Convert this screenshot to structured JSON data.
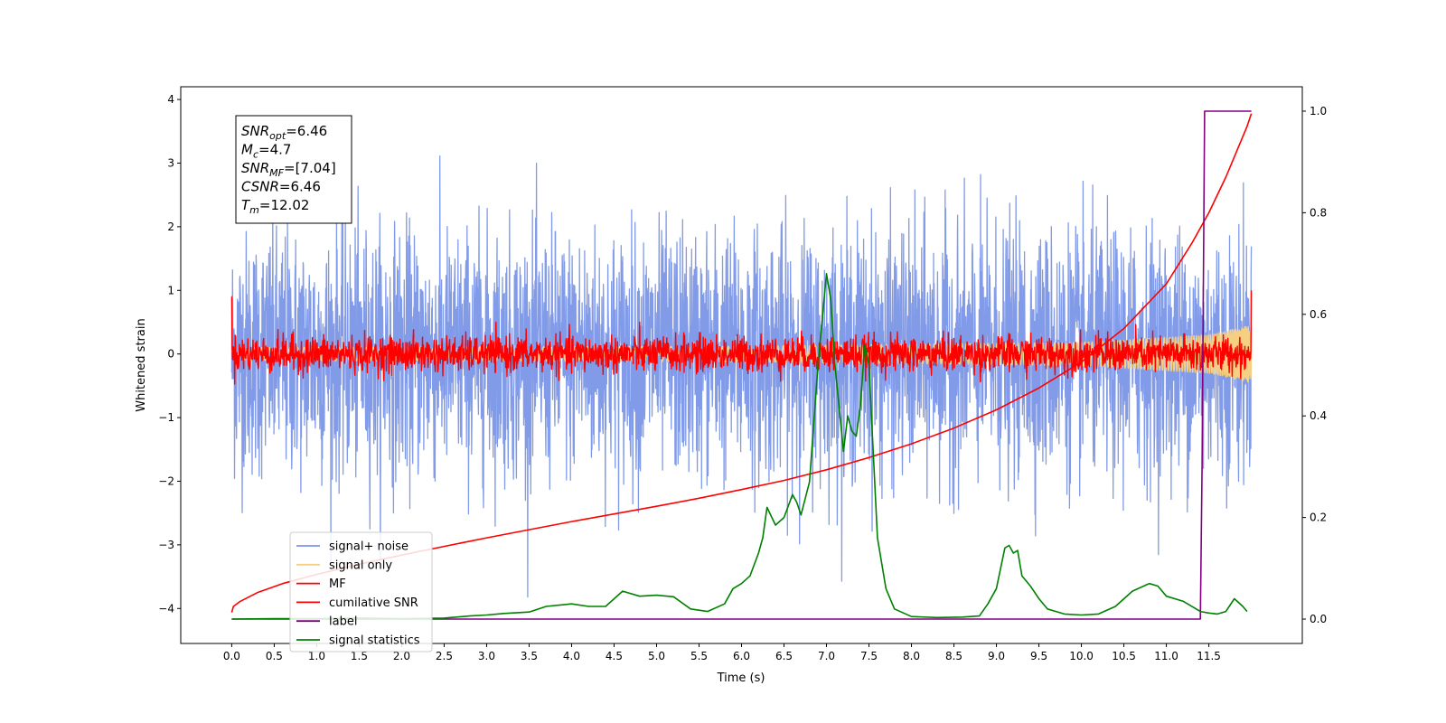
{
  "chart_data": {
    "type": "line",
    "title": "",
    "xlabel": "Time (s)",
    "ylabel": "Whitened strain",
    "y2label": "",
    "xlim": [
      -0.6,
      12.6
    ],
    "ylim": [
      -4.55,
      4.2
    ],
    "y2lim": [
      -0.048,
      1.048
    ],
    "x_ticks": [
      "0.0",
      "0.5",
      "1.0",
      "1.5",
      "2.0",
      "2.5",
      "3.0",
      "3.5",
      "4.0",
      "4.5",
      "5.0",
      "5.5",
      "6.0",
      "6.5",
      "7.0",
      "7.5",
      "8.0",
      "8.5",
      "9.0",
      "9.5",
      "10.0",
      "10.5",
      "11.0",
      "11.5"
    ],
    "y_ticks": [
      "4",
      "3",
      "2",
      "1",
      "0",
      "−1",
      "−2",
      "−3",
      "−4"
    ],
    "y2_ticks": [
      "1.0",
      "0.8",
      "0.6",
      "0.4",
      "0.2",
      "0.0"
    ],
    "grid": false,
    "legend_position": "bottom-left",
    "annotation": {
      "lines": [
        {
          "sym": "SNR",
          "sub": "opt",
          "val": "=6.46"
        },
        {
          "sym": "M",
          "sub": "c",
          "val": "=4.7"
        },
        {
          "sym": "SNR",
          "sub": "MF",
          "val": "=[7.04]"
        },
        {
          "sym": "CSNR",
          "sub": "",
          "val": "=6.46"
        },
        {
          "sym": "T",
          "sub": "m",
          "val": "=12.02"
        }
      ]
    },
    "series": [
      {
        "name": "signal+ noise",
        "axis": "left",
        "color": "#7b96e8",
        "kind": "noise",
        "x_range": [
          0.0,
          12.0
        ],
        "amplitude_sd": 0.95,
        "samples": 3600
      },
      {
        "name": "signal only",
        "axis": "left",
        "color": "#f5cf82",
        "kind": "chirp",
        "x_range": [
          0.0,
          12.0
        ],
        "envelope": [
          [
            0.0,
            0.1
          ],
          [
            6.0,
            0.12
          ],
          [
            10.0,
            0.18
          ],
          [
            11.5,
            0.3
          ],
          [
            12.0,
            0.45
          ]
        ]
      },
      {
        "name": "MF",
        "axis": "left",
        "color": "#ff0000",
        "kind": "noise",
        "x_range": [
          0.0,
          12.0
        ],
        "amplitude_sd": 0.14,
        "samples": 2400,
        "edge_values": [
          0.9,
          1.0
        ]
      },
      {
        "name": "cumilative SNR",
        "axis": "right",
        "color": "#ff0000",
        "x": [
          0.0,
          0.02,
          0.1,
          0.3,
          0.6,
          1.0,
          1.5,
          2.0,
          2.5,
          3.0,
          3.5,
          4.0,
          4.5,
          5.0,
          5.5,
          6.0,
          6.5,
          7.0,
          7.5,
          8.0,
          8.5,
          9.0,
          9.5,
          10.0,
          10.5,
          11.0,
          11.3,
          11.5,
          11.7,
          11.85,
          11.95,
          12.0
        ],
        "y": [
          0.013,
          0.025,
          0.035,
          0.052,
          0.07,
          0.088,
          0.108,
          0.126,
          0.143,
          0.16,
          0.176,
          0.192,
          0.207,
          0.222,
          0.238,
          0.255,
          0.273,
          0.294,
          0.318,
          0.345,
          0.376,
          0.412,
          0.455,
          0.506,
          0.572,
          0.66,
          0.74,
          0.8,
          0.87,
          0.93,
          0.97,
          0.995
        ]
      },
      {
        "name": "label",
        "axis": "right",
        "color": "#800080",
        "x": [
          0.0,
          11.4,
          11.42,
          11.45,
          11.5,
          12.0
        ],
        "y": [
          0.0,
          0.0,
          0.3,
          1.0,
          1.0,
          1.0
        ]
      },
      {
        "name": "signal statistics",
        "axis": "right",
        "color": "#008000",
        "x": [
          0.0,
          0.5,
          1.0,
          1.5,
          2.0,
          2.5,
          2.8,
          3.0,
          3.2,
          3.5,
          3.7,
          4.0,
          4.2,
          4.4,
          4.6,
          4.8,
          5.0,
          5.2,
          5.4,
          5.6,
          5.8,
          5.9,
          6.0,
          6.1,
          6.2,
          6.25,
          6.3,
          6.4,
          6.5,
          6.6,
          6.65,
          6.7,
          6.8,
          6.9,
          7.0,
          7.05,
          7.1,
          7.2,
          7.25,
          7.3,
          7.35,
          7.4,
          7.45,
          7.5,
          7.55,
          7.6,
          7.7,
          7.8,
          8.0,
          8.3,
          8.6,
          8.8,
          8.9,
          9.0,
          9.1,
          9.15,
          9.2,
          9.25,
          9.3,
          9.35,
          9.4,
          9.5,
          9.6,
          9.7,
          9.8,
          10.0,
          10.2,
          10.4,
          10.6,
          10.8,
          10.9,
          11.0,
          11.2,
          11.4,
          11.5,
          11.6,
          11.7,
          11.8,
          11.9,
          11.95
        ],
        "y": [
          0.0,
          0.001,
          0.001,
          0.002,
          0.001,
          0.002,
          0.006,
          0.008,
          0.011,
          0.014,
          0.025,
          0.03,
          0.025,
          0.025,
          0.055,
          0.045,
          0.047,
          0.044,
          0.02,
          0.015,
          0.03,
          0.06,
          0.07,
          0.085,
          0.13,
          0.16,
          0.22,
          0.185,
          0.2,
          0.245,
          0.23,
          0.205,
          0.27,
          0.5,
          0.68,
          0.63,
          0.5,
          0.33,
          0.4,
          0.37,
          0.36,
          0.42,
          0.54,
          0.5,
          0.33,
          0.16,
          0.06,
          0.02,
          0.005,
          0.003,
          0.004,
          0.006,
          0.03,
          0.06,
          0.14,
          0.145,
          0.13,
          0.135,
          0.085,
          0.075,
          0.065,
          0.04,
          0.02,
          0.015,
          0.01,
          0.008,
          0.01,
          0.025,
          0.055,
          0.07,
          0.065,
          0.045,
          0.035,
          0.015,
          0.012,
          0.01,
          0.015,
          0.04,
          0.025,
          0.015
        ]
      }
    ]
  }
}
